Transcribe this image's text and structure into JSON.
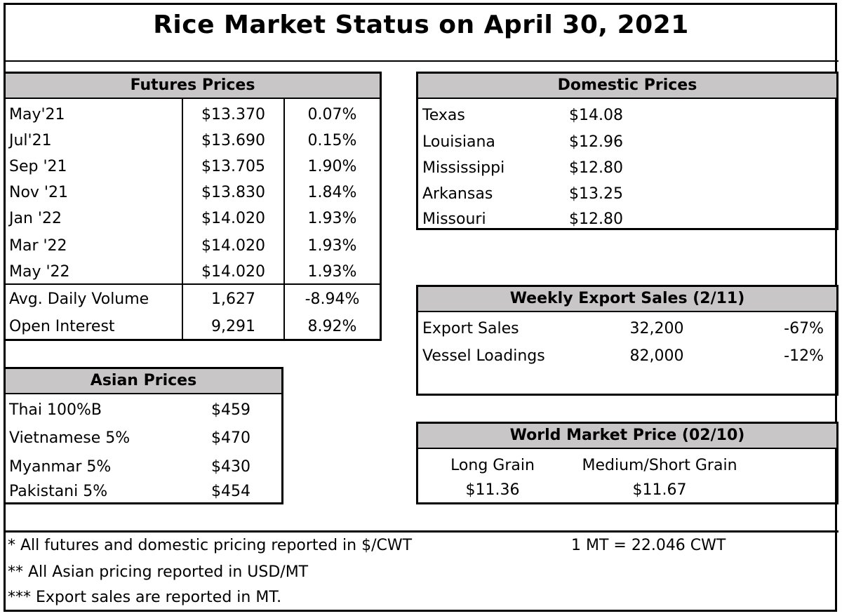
{
  "title": "Rice Market Status on April 30, 2021",
  "futures": {
    "header": "Futures Prices",
    "rows": [
      {
        "month": "May'21",
        "price": "$13.370",
        "change": "0.07%"
      },
      {
        "month": "Jul'21",
        "price": "$13.690",
        "change": "0.15%"
      },
      {
        "month": "Sep '21",
        "price": "$13.705",
        "change": "1.90%"
      },
      {
        "month": "Nov '21",
        "price": "$13.830",
        "change": "1.84%"
      },
      {
        "month": "Jan '22",
        "price": "$14.020",
        "change": "1.93%"
      },
      {
        "month": "Mar '22",
        "price": "$14.020",
        "change": "1.93%"
      },
      {
        "month": "May '22",
        "price": "$14.020",
        "change": "1.93%"
      }
    ],
    "volume": {
      "label": "Avg. Daily Volume",
      "value": "1,627",
      "change": "-8.94%"
    },
    "open_interest": {
      "label": "Open Interest",
      "value": "9,291",
      "change": "8.92%"
    }
  },
  "domestic": {
    "header": "Domestic Prices",
    "rows": [
      {
        "state": "Texas",
        "price": "$14.08"
      },
      {
        "state": "Louisiana",
        "price": "$12.96"
      },
      {
        "state": "Mississippi",
        "price": "$12.80"
      },
      {
        "state": "Arkansas",
        "price": "$13.25"
      },
      {
        "state": "Missouri",
        "price": "$12.80"
      }
    ]
  },
  "export": {
    "header": "Weekly Export Sales (2/11)",
    "rows": [
      {
        "label": "Export Sales",
        "value": "32,200",
        "change": "-67%"
      },
      {
        "label": "Vessel Loadings",
        "value": "82,000",
        "change": "-12%"
      }
    ]
  },
  "asian": {
    "header": "Asian Prices",
    "rows": [
      {
        "label": "Thai 100%B",
        "price": "$459"
      },
      {
        "label": "Vietnamese 5%",
        "price": "$470"
      },
      {
        "label": "Myanmar 5%",
        "price": "$430"
      },
      {
        "label": "Pakistani 5%",
        "price": "$454"
      }
    ]
  },
  "world": {
    "header": "World Market Price (02/10)",
    "long_label": "Long Grain",
    "long_price": "$11.36",
    "medium_label": "Medium/Short Grain",
    "medium_price": "$11.67"
  },
  "notes": {
    "n1": "* All futures and domestic pricing reported in $/CWT",
    "n2": "** All Asian pricing reported in USD/MT",
    "n3": "*** Export sales are reported in MT.",
    "conversion": "1 MT = 22.046 CWT"
  }
}
